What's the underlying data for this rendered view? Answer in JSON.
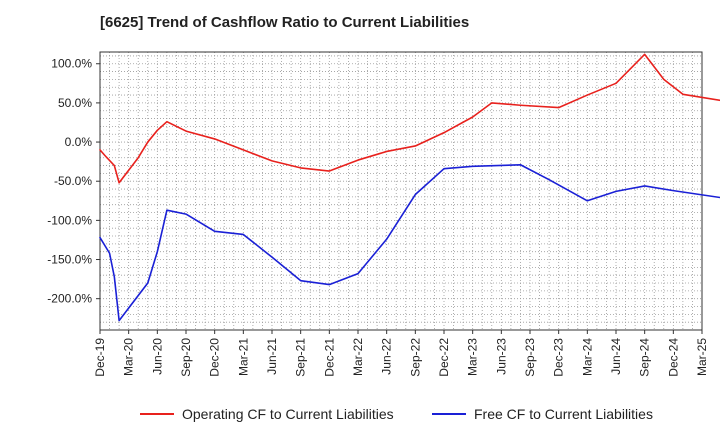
{
  "chart_data": {
    "type": "line",
    "title": "[6625]  Trend of Cashflow Ratio to Current Liabilities",
    "xlabel": "",
    "ylabel": "",
    "x_ticks": [
      "Dec-19",
      "Mar-20",
      "Jun-20",
      "Sep-20",
      "Dec-20",
      "Mar-21",
      "Jun-21",
      "Sep-21",
      "Dec-21",
      "Mar-22",
      "Jun-22",
      "Sep-22",
      "Dec-22",
      "Mar-23",
      "Jun-23",
      "Sep-23",
      "Dec-23",
      "Mar-24",
      "Jun-24",
      "Sep-24",
      "Dec-24",
      "Mar-25"
    ],
    "y_ticks": [
      "100.0%",
      "50.0%",
      "0.0%",
      "-50.0%",
      "-100.0%",
      "-150.0%",
      "-200.0%"
    ],
    "y_tick_values": [
      100,
      50,
      0,
      -50,
      -100,
      -150,
      -200
    ],
    "ylim": [
      -240,
      115
    ],
    "grid": true,
    "legend_position": "bottom",
    "series": [
      {
        "name": "Operating CF to Current Liabilities",
        "color": "#e8211d",
        "points": [
          [
            0,
            -10
          ],
          [
            0.5,
            -17
          ],
          [
            1.5,
            -30
          ],
          [
            2,
            -52
          ],
          [
            4,
            -20
          ],
          [
            5,
            0
          ],
          [
            6,
            15
          ],
          [
            7,
            26
          ],
          [
            9,
            14
          ],
          [
            12,
            4
          ],
          [
            15,
            -10
          ],
          [
            18,
            -24
          ],
          [
            21,
            -33
          ],
          [
            24,
            -37
          ],
          [
            27,
            -23
          ],
          [
            30,
            -12
          ],
          [
            33,
            -5
          ],
          [
            36,
            12
          ],
          [
            39,
            32
          ],
          [
            41,
            50
          ],
          [
            44,
            47
          ],
          [
            48,
            44
          ],
          [
            51,
            60
          ],
          [
            54,
            75
          ],
          [
            57,
            112
          ],
          [
            59,
            80
          ],
          [
            61,
            61
          ],
          [
            65,
            53
          ]
        ]
      },
      {
        "name": "Free CF to Current Liabilities",
        "color": "#1a20d6",
        "points": [
          [
            0,
            -122
          ],
          [
            1,
            -142
          ],
          [
            1.5,
            -172
          ],
          [
            2,
            -228
          ],
          [
            5,
            -180
          ],
          [
            6,
            -140
          ],
          [
            7,
            -87
          ],
          [
            9,
            -92
          ],
          [
            12,
            -114
          ],
          [
            15,
            -118
          ],
          [
            18,
            -147
          ],
          [
            21,
            -177
          ],
          [
            24,
            -182
          ],
          [
            27,
            -168
          ],
          [
            30,
            -124
          ],
          [
            33,
            -67
          ],
          [
            36,
            -34
          ],
          [
            39,
            -31
          ],
          [
            44,
            -29
          ],
          [
            47,
            -48
          ],
          [
            51,
            -75
          ],
          [
            54,
            -63
          ],
          [
            57,
            -56
          ],
          [
            60,
            -62
          ],
          [
            65,
            -71
          ]
        ]
      }
    ]
  }
}
